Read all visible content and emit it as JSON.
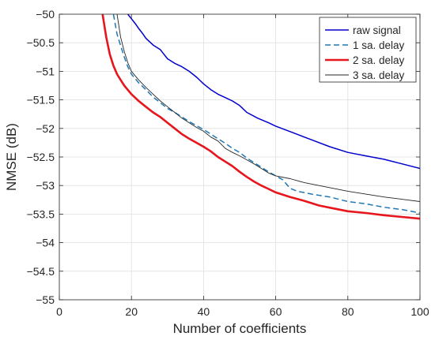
{
  "chart_data": {
    "type": "line",
    "title": "",
    "xlabel": "Number of coefficients",
    "ylabel": "NMSE (dB)",
    "xlim": [
      0,
      100
    ],
    "ylim": [
      -55,
      -50
    ],
    "xticks": [
      0,
      20,
      40,
      60,
      80,
      100
    ],
    "yticks": [
      -55,
      -54.5,
      -54,
      -53.5,
      -53,
      -52.5,
      -52,
      -51.5,
      -51,
      -50.5,
      -50
    ],
    "xtick_labels": [
      "0",
      "20",
      "40",
      "60",
      "80",
      "100"
    ],
    "ytick_labels": [
      "−55",
      "−54.5",
      "−54",
      "−53.5",
      "−53",
      "−52.5",
      "−52",
      "−51.5",
      "−51",
      "−50.5",
      "−50"
    ],
    "grid": true,
    "legend_position": "top-right",
    "series": [
      {
        "name": "raw signal",
        "color": "#0000cc",
        "style": "solid",
        "width": 1.5,
        "points": [
          [
            19,
            -50
          ],
          [
            20,
            -50.08
          ],
          [
            21,
            -50.16
          ],
          [
            22,
            -50.25
          ],
          [
            23,
            -50.33
          ],
          [
            24,
            -50.42
          ],
          [
            25,
            -50.48
          ],
          [
            26,
            -50.54
          ],
          [
            27,
            -50.58
          ],
          [
            28,
            -50.62
          ],
          [
            29,
            -50.7
          ],
          [
            30,
            -50.78
          ],
          [
            32,
            -50.86
          ],
          [
            34,
            -50.92
          ],
          [
            36,
            -51.0
          ],
          [
            38,
            -51.1
          ],
          [
            40,
            -51.22
          ],
          [
            42,
            -51.32
          ],
          [
            44,
            -51.4
          ],
          [
            46,
            -51.46
          ],
          [
            48,
            -51.52
          ],
          [
            50,
            -51.6
          ],
          [
            52,
            -51.72
          ],
          [
            55,
            -51.82
          ],
          [
            58,
            -51.9
          ],
          [
            60,
            -51.96
          ],
          [
            65,
            -52.08
          ],
          [
            70,
            -52.2
          ],
          [
            75,
            -52.32
          ],
          [
            80,
            -52.42
          ],
          [
            85,
            -52.48
          ],
          [
            90,
            -52.54
          ],
          [
            95,
            -52.62
          ],
          [
            100,
            -52.7
          ]
        ]
      },
      {
        "name": "1 sa. delay",
        "color": "#1f77b4",
        "style": "dashed",
        "width": 1.5,
        "points": [
          [
            15,
            -50
          ],
          [
            16,
            -50.35
          ],
          [
            17,
            -50.55
          ],
          [
            18,
            -50.75
          ],
          [
            19,
            -50.92
          ],
          [
            20,
            -51.05
          ],
          [
            22,
            -51.2
          ],
          [
            24,
            -51.32
          ],
          [
            26,
            -51.45
          ],
          [
            28,
            -51.55
          ],
          [
            30,
            -51.65
          ],
          [
            32,
            -51.72
          ],
          [
            34,
            -51.8
          ],
          [
            36,
            -51.88
          ],
          [
            38,
            -51.95
          ],
          [
            40,
            -52.02
          ],
          [
            42,
            -52.1
          ],
          [
            44,
            -52.18
          ],
          [
            46,
            -52.26
          ],
          [
            48,
            -52.35
          ],
          [
            50,
            -52.42
          ],
          [
            52,
            -52.52
          ],
          [
            54,
            -52.6
          ],
          [
            56,
            -52.68
          ],
          [
            58,
            -52.76
          ],
          [
            60,
            -52.83
          ],
          [
            62,
            -52.9
          ],
          [
            64,
            -53.05
          ],
          [
            66,
            -53.1
          ],
          [
            70,
            -53.15
          ],
          [
            75,
            -53.2
          ],
          [
            80,
            -53.28
          ],
          [
            85,
            -53.32
          ],
          [
            90,
            -53.38
          ],
          [
            95,
            -53.42
          ],
          [
            100,
            -53.48
          ]
        ]
      },
      {
        "name": "2 sa. delay",
        "color": "#e6161c",
        "style": "solid",
        "width": 2.6,
        "points": [
          [
            12,
            -50
          ],
          [
            13,
            -50.4
          ],
          [
            14,
            -50.7
          ],
          [
            15,
            -50.9
          ],
          [
            16,
            -51.05
          ],
          [
            17,
            -51.15
          ],
          [
            18,
            -51.25
          ],
          [
            20,
            -51.4
          ],
          [
            22,
            -51.52
          ],
          [
            24,
            -51.62
          ],
          [
            26,
            -51.72
          ],
          [
            28,
            -51.8
          ],
          [
            30,
            -51.9
          ],
          [
            32,
            -52.0
          ],
          [
            34,
            -52.1
          ],
          [
            36,
            -52.18
          ],
          [
            38,
            -52.25
          ],
          [
            40,
            -52.32
          ],
          [
            42,
            -52.4
          ],
          [
            44,
            -52.5
          ],
          [
            46,
            -52.58
          ],
          [
            48,
            -52.66
          ],
          [
            50,
            -52.76
          ],
          [
            52,
            -52.85
          ],
          [
            54,
            -52.93
          ],
          [
            56,
            -53.0
          ],
          [
            58,
            -53.06
          ],
          [
            60,
            -53.12
          ],
          [
            64,
            -53.2
          ],
          [
            68,
            -53.27
          ],
          [
            72,
            -53.35
          ],
          [
            76,
            -53.4
          ],
          [
            80,
            -53.45
          ],
          [
            85,
            -53.48
          ],
          [
            90,
            -53.52
          ],
          [
            95,
            -53.55
          ],
          [
            100,
            -53.58
          ]
        ]
      },
      {
        "name": "3 sa. delay",
        "color": "#262626",
        "style": "solid",
        "width": 0.9,
        "points": [
          [
            16,
            -50
          ],
          [
            17,
            -50.4
          ],
          [
            18,
            -50.65
          ],
          [
            19,
            -50.85
          ],
          [
            20,
            -51.0
          ],
          [
            22,
            -51.15
          ],
          [
            24,
            -51.28
          ],
          [
            26,
            -51.4
          ],
          [
            28,
            -51.52
          ],
          [
            30,
            -51.62
          ],
          [
            32,
            -51.72
          ],
          [
            34,
            -51.82
          ],
          [
            36,
            -51.9
          ],
          [
            38,
            -51.98
          ],
          [
            40,
            -52.05
          ],
          [
            42,
            -52.15
          ],
          [
            44,
            -52.22
          ],
          [
            46,
            -52.35
          ],
          [
            48,
            -52.42
          ],
          [
            50,
            -52.48
          ],
          [
            52,
            -52.55
          ],
          [
            54,
            -52.62
          ],
          [
            56,
            -52.7
          ],
          [
            58,
            -52.78
          ],
          [
            60,
            -52.83
          ],
          [
            64,
            -52.88
          ],
          [
            68,
            -52.95
          ],
          [
            72,
            -53.0
          ],
          [
            76,
            -53.05
          ],
          [
            80,
            -53.1
          ],
          [
            85,
            -53.15
          ],
          [
            90,
            -53.2
          ],
          [
            95,
            -53.24
          ],
          [
            100,
            -53.28
          ]
        ]
      }
    ]
  }
}
